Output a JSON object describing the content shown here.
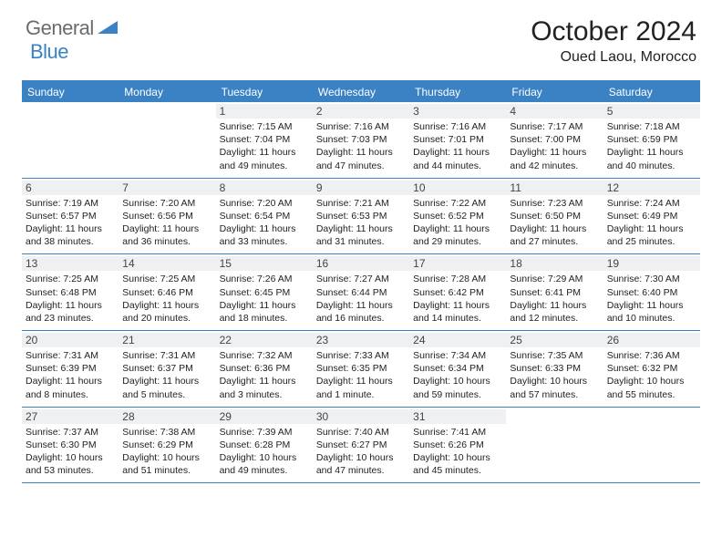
{
  "logo": {
    "text1": "General",
    "text2": "Blue"
  },
  "header": {
    "month_title": "October 2024",
    "location": "Oued Laou, Morocco"
  },
  "colors": {
    "accent": "#3a82c4",
    "daynum_bg": "#eef0f2",
    "text": "#222222",
    "logo_grey": "#6b6b6b"
  },
  "dow": [
    "Sunday",
    "Monday",
    "Tuesday",
    "Wednesday",
    "Thursday",
    "Friday",
    "Saturday"
  ],
  "weeks": [
    [
      {
        "n": "",
        "sr": "",
        "ss": "",
        "dl": ""
      },
      {
        "n": "",
        "sr": "",
        "ss": "",
        "dl": ""
      },
      {
        "n": "1",
        "sr": "Sunrise: 7:15 AM",
        "ss": "Sunset: 7:04 PM",
        "dl": "Daylight: 11 hours and 49 minutes."
      },
      {
        "n": "2",
        "sr": "Sunrise: 7:16 AM",
        "ss": "Sunset: 7:03 PM",
        "dl": "Daylight: 11 hours and 47 minutes."
      },
      {
        "n": "3",
        "sr": "Sunrise: 7:16 AM",
        "ss": "Sunset: 7:01 PM",
        "dl": "Daylight: 11 hours and 44 minutes."
      },
      {
        "n": "4",
        "sr": "Sunrise: 7:17 AM",
        "ss": "Sunset: 7:00 PM",
        "dl": "Daylight: 11 hours and 42 minutes."
      },
      {
        "n": "5",
        "sr": "Sunrise: 7:18 AM",
        "ss": "Sunset: 6:59 PM",
        "dl": "Daylight: 11 hours and 40 minutes."
      }
    ],
    [
      {
        "n": "6",
        "sr": "Sunrise: 7:19 AM",
        "ss": "Sunset: 6:57 PM",
        "dl": "Daylight: 11 hours and 38 minutes."
      },
      {
        "n": "7",
        "sr": "Sunrise: 7:20 AM",
        "ss": "Sunset: 6:56 PM",
        "dl": "Daylight: 11 hours and 36 minutes."
      },
      {
        "n": "8",
        "sr": "Sunrise: 7:20 AM",
        "ss": "Sunset: 6:54 PM",
        "dl": "Daylight: 11 hours and 33 minutes."
      },
      {
        "n": "9",
        "sr": "Sunrise: 7:21 AM",
        "ss": "Sunset: 6:53 PM",
        "dl": "Daylight: 11 hours and 31 minutes."
      },
      {
        "n": "10",
        "sr": "Sunrise: 7:22 AM",
        "ss": "Sunset: 6:52 PM",
        "dl": "Daylight: 11 hours and 29 minutes."
      },
      {
        "n": "11",
        "sr": "Sunrise: 7:23 AM",
        "ss": "Sunset: 6:50 PM",
        "dl": "Daylight: 11 hours and 27 minutes."
      },
      {
        "n": "12",
        "sr": "Sunrise: 7:24 AM",
        "ss": "Sunset: 6:49 PM",
        "dl": "Daylight: 11 hours and 25 minutes."
      }
    ],
    [
      {
        "n": "13",
        "sr": "Sunrise: 7:25 AM",
        "ss": "Sunset: 6:48 PM",
        "dl": "Daylight: 11 hours and 23 minutes."
      },
      {
        "n": "14",
        "sr": "Sunrise: 7:25 AM",
        "ss": "Sunset: 6:46 PM",
        "dl": "Daylight: 11 hours and 20 minutes."
      },
      {
        "n": "15",
        "sr": "Sunrise: 7:26 AM",
        "ss": "Sunset: 6:45 PM",
        "dl": "Daylight: 11 hours and 18 minutes."
      },
      {
        "n": "16",
        "sr": "Sunrise: 7:27 AM",
        "ss": "Sunset: 6:44 PM",
        "dl": "Daylight: 11 hours and 16 minutes."
      },
      {
        "n": "17",
        "sr": "Sunrise: 7:28 AM",
        "ss": "Sunset: 6:42 PM",
        "dl": "Daylight: 11 hours and 14 minutes."
      },
      {
        "n": "18",
        "sr": "Sunrise: 7:29 AM",
        "ss": "Sunset: 6:41 PM",
        "dl": "Daylight: 11 hours and 12 minutes."
      },
      {
        "n": "19",
        "sr": "Sunrise: 7:30 AM",
        "ss": "Sunset: 6:40 PM",
        "dl": "Daylight: 11 hours and 10 minutes."
      }
    ],
    [
      {
        "n": "20",
        "sr": "Sunrise: 7:31 AM",
        "ss": "Sunset: 6:39 PM",
        "dl": "Daylight: 11 hours and 8 minutes."
      },
      {
        "n": "21",
        "sr": "Sunrise: 7:31 AM",
        "ss": "Sunset: 6:37 PM",
        "dl": "Daylight: 11 hours and 5 minutes."
      },
      {
        "n": "22",
        "sr": "Sunrise: 7:32 AM",
        "ss": "Sunset: 6:36 PM",
        "dl": "Daylight: 11 hours and 3 minutes."
      },
      {
        "n": "23",
        "sr": "Sunrise: 7:33 AM",
        "ss": "Sunset: 6:35 PM",
        "dl": "Daylight: 11 hours and 1 minute."
      },
      {
        "n": "24",
        "sr": "Sunrise: 7:34 AM",
        "ss": "Sunset: 6:34 PM",
        "dl": "Daylight: 10 hours and 59 minutes."
      },
      {
        "n": "25",
        "sr": "Sunrise: 7:35 AM",
        "ss": "Sunset: 6:33 PM",
        "dl": "Daylight: 10 hours and 57 minutes."
      },
      {
        "n": "26",
        "sr": "Sunrise: 7:36 AM",
        "ss": "Sunset: 6:32 PM",
        "dl": "Daylight: 10 hours and 55 minutes."
      }
    ],
    [
      {
        "n": "27",
        "sr": "Sunrise: 7:37 AM",
        "ss": "Sunset: 6:30 PM",
        "dl": "Daylight: 10 hours and 53 minutes."
      },
      {
        "n": "28",
        "sr": "Sunrise: 7:38 AM",
        "ss": "Sunset: 6:29 PM",
        "dl": "Daylight: 10 hours and 51 minutes."
      },
      {
        "n": "29",
        "sr": "Sunrise: 7:39 AM",
        "ss": "Sunset: 6:28 PM",
        "dl": "Daylight: 10 hours and 49 minutes."
      },
      {
        "n": "30",
        "sr": "Sunrise: 7:40 AM",
        "ss": "Sunset: 6:27 PM",
        "dl": "Daylight: 10 hours and 47 minutes."
      },
      {
        "n": "31",
        "sr": "Sunrise: 7:41 AM",
        "ss": "Sunset: 6:26 PM",
        "dl": "Daylight: 10 hours and 45 minutes."
      },
      {
        "n": "",
        "sr": "",
        "ss": "",
        "dl": ""
      },
      {
        "n": "",
        "sr": "",
        "ss": "",
        "dl": ""
      }
    ]
  ]
}
